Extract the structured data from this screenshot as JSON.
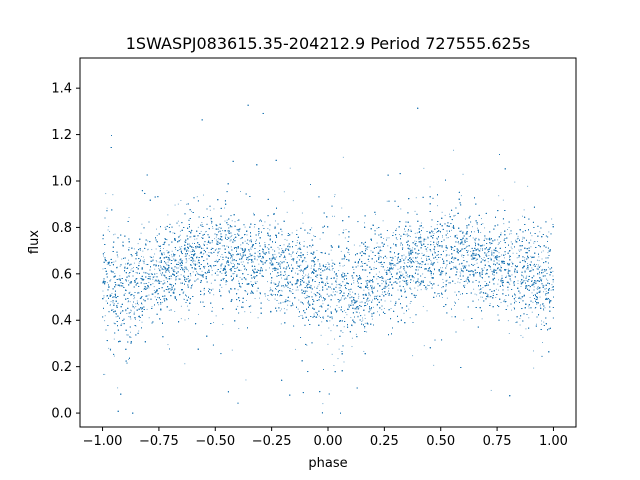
{
  "chart_data": {
    "type": "scatter",
    "title": "1SWASPJ083615.35-204212.9 Period 727555.625s",
    "xlabel": "phase",
    "ylabel": "flux",
    "xlim": [
      -1.1,
      1.1
    ],
    "ylim": [
      -0.06,
      1.53
    ],
    "xticks": [
      -1.0,
      -0.75,
      -0.5,
      -0.25,
      0.0,
      0.25,
      0.5,
      0.75,
      1.0
    ],
    "xtick_labels": [
      "−1.00",
      "−0.75",
      "−0.50",
      "−0.25",
      "0.00",
      "0.25",
      "0.50",
      "0.75",
      "1.00"
    ],
    "yticks": [
      0.0,
      0.2,
      0.4,
      0.6,
      0.8,
      1.0,
      1.2,
      1.4
    ],
    "ytick_labels": [
      "0.0",
      "0.2",
      "0.4",
      "0.6",
      "0.8",
      "1.0",
      "1.2",
      "1.4"
    ],
    "grid": false,
    "marker_color": "#1f77b4",
    "series": [
      {
        "phase_range": [
          -1.0,
          1.0
        ],
        "points_approx": 24000,
        "profile": [
          {
            "phase": 0.0,
            "flux_center": 0.55,
            "flux_spread": 0.12
          },
          {
            "phase": 0.1,
            "flux_center": 0.52,
            "flux_spread": 0.13
          },
          {
            "phase": 0.2,
            "flux_center": 0.58,
            "flux_spread": 0.1
          },
          {
            "phase": 0.3,
            "flux_center": 0.63,
            "flux_spread": 0.1
          },
          {
            "phase": 0.4,
            "flux_center": 0.67,
            "flux_spread": 0.1
          },
          {
            "phase": 0.5,
            "flux_center": 0.68,
            "flux_spread": 0.1
          },
          {
            "phase": 0.6,
            "flux_center": 0.67,
            "flux_spread": 0.1
          },
          {
            "phase": 0.7,
            "flux_center": 0.65,
            "flux_spread": 0.1
          },
          {
            "phase": 0.8,
            "flux_center": 0.62,
            "flux_spread": 0.1
          },
          {
            "phase": 0.9,
            "flux_center": 0.58,
            "flux_spread": 0.11
          },
          {
            "phase": 1.0,
            "flux_center": 0.55,
            "flux_spread": 0.12
          }
        ]
      }
    ]
  }
}
